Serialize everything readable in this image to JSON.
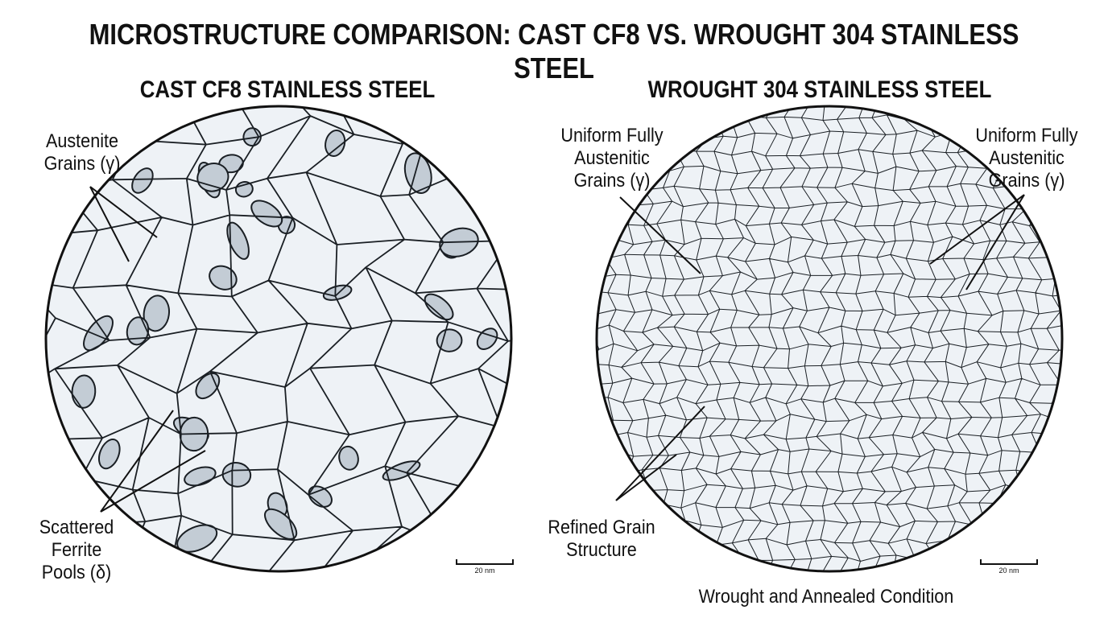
{
  "title": "MICROSTRUCTURE COMPARISON: CAST CF8 VS. WROUGHT 304 STAINLESS STEEL",
  "left": {
    "heading": "CAST CF8 STAINLESS STEEL",
    "label_austenite": "Austenite Grains (γ)",
    "label_ferrite": "Scattered Ferrite Pools (δ)",
    "scale_bar": "20 nm"
  },
  "right": {
    "heading": "WROUGHT 304 STAINLESS STEEL",
    "label_uniform_left": "Uniform Fully Austenitic Grains (γ)",
    "label_uniform_right": "Uniform Fully Austenitic Grains (γ)",
    "label_refined": "Refined Grain Structure",
    "scale_bar": "20 nm",
    "condition": "Wrought and Annealed Condition"
  },
  "colors": {
    "matrix": "#eef2f6",
    "ferrite": "#c3ccd5",
    "boundary": "#1a1f24"
  }
}
